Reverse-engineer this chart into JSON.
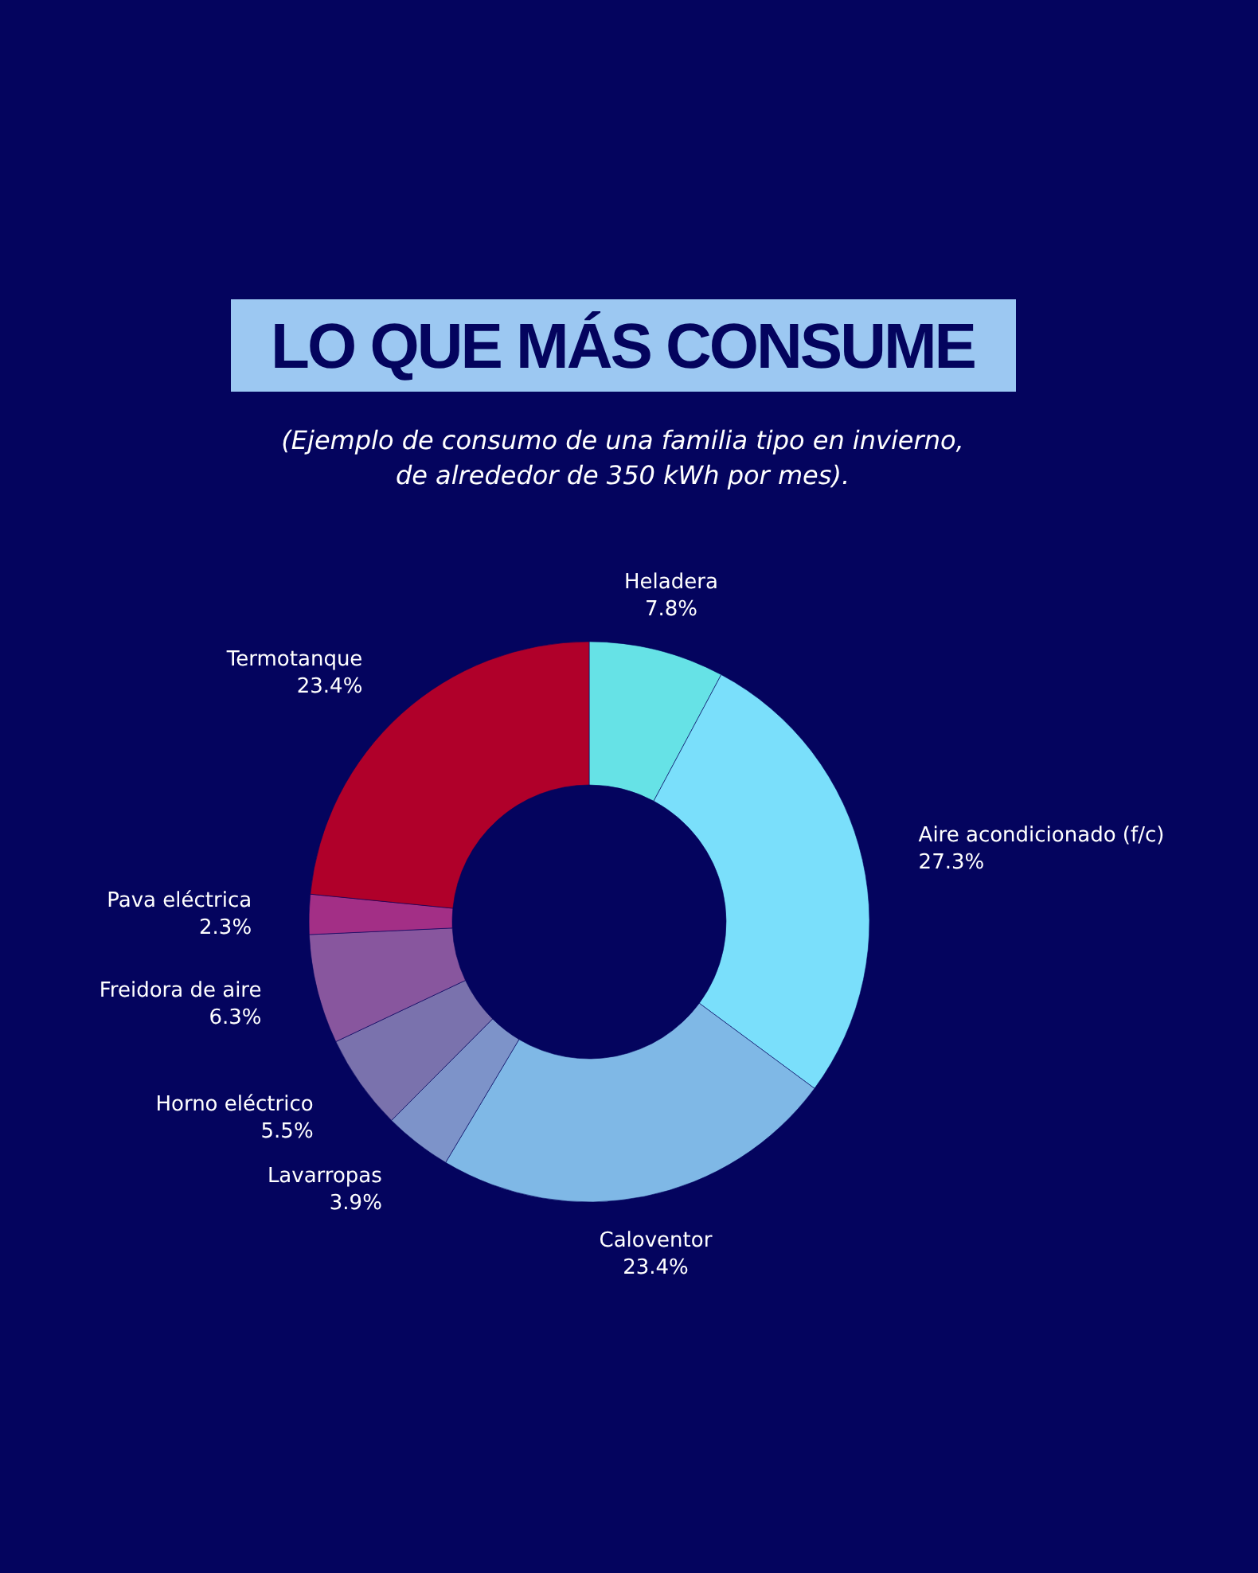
{
  "chart_data": {
    "type": "donut",
    "title": "LO QUE MÁS CONSUME",
    "subtitle": "(Ejemplo de consumo de una familia tipo en invierno,\nde alrededor de 350 kWh por mes).",
    "categories": [
      "Heladera",
      "Aire acondicionado (f/c)",
      "Caloventor",
      "Lavarropas",
      "Horno eléctrico",
      "Freidora de aire",
      "Pava eléctrica",
      "Termotanque"
    ],
    "values": [
      7.8,
      27.3,
      23.4,
      3.9,
      5.5,
      6.3,
      2.3,
      23.4
    ],
    "value_labels": [
      "7.8%",
      "27.3%",
      "23.4%",
      "3.9%",
      "5.5%",
      "6.3%",
      "2.3%",
      "23.4%"
    ],
    "colors": [
      "#66e2e6",
      "#7adffb",
      "#7fb8e6",
      "#7d93c9",
      "#7a72ad",
      "#88569e",
      "#a32f86",
      "#b0002a"
    ]
  }
}
